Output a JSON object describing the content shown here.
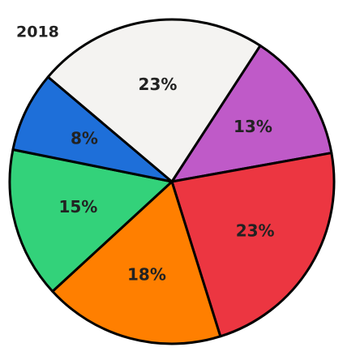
{
  "chart_data": {
    "type": "pie",
    "title": "2018",
    "categories": [
      "Purple",
      "Red",
      "Orange",
      "Green",
      "Blue",
      "White"
    ],
    "values": [
      13,
      23,
      18,
      15,
      8,
      23
    ],
    "value_labels": [
      "13%",
      "23%",
      "18%",
      "15%",
      "8%",
      "23%"
    ],
    "colors": [
      "#bf5ac8",
      "#ec3641",
      "#ff7f00",
      "#33d27a",
      "#1e6fd9",
      "#f4f3f1"
    ]
  }
}
